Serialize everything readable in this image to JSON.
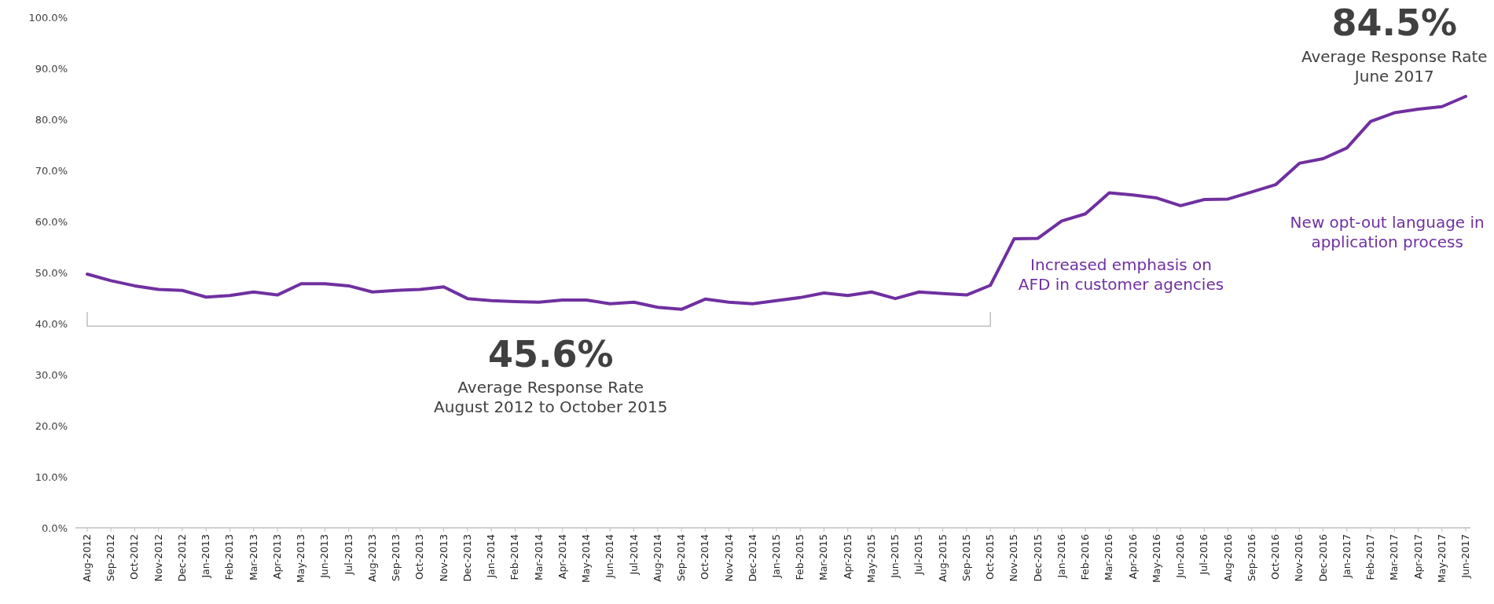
{
  "chart_data": {
    "type": "line",
    "categories": [
      "Aug-2012",
      "Sep-2012",
      "Oct-2012",
      "Nov-2012",
      "Dec-2012",
      "Jan-2013",
      "Feb-2013",
      "Mar-2013",
      "Apr-2013",
      "May-2013",
      "Jun-2013",
      "Jul-2013",
      "Aug-2013",
      "Sep-2013",
      "Oct-2013",
      "Nov-2013",
      "Dec-2013",
      "Jan-2014",
      "Feb-2014",
      "Mar-2014",
      "Apr-2014",
      "May-2014",
      "Jun-2014",
      "Jul-2014",
      "Aug-2014",
      "Sep-2014",
      "Oct-2014",
      "Nov-2014",
      "Dec-2014",
      "Jan-2015",
      "Feb-2015",
      "Mar-2015",
      "Apr-2015",
      "May-2015",
      "Jun-2015",
      "Jul-2015",
      "Aug-2015",
      "Sep-2015",
      "Oct-2015",
      "Nov-2015",
      "Dec-2015",
      "Jan-2016",
      "Feb-2016",
      "Mar-2016",
      "Apr-2016",
      "May-2016",
      "Jun-2016",
      "Jul-2016",
      "Aug-2016",
      "Sep-2016",
      "Oct-2016",
      "Nov-2016",
      "Dec-2016",
      "Jan-2017",
      "Feb-2017",
      "Mar-2017",
      "Apr-2017",
      "May-2017",
      "Jun-2017"
    ],
    "series": [
      {
        "color": "#7030a0",
        "values": [
          49.7,
          48.4,
          47.4,
          46.7,
          46.5,
          45.2,
          45.5,
          46.2,
          45.6,
          47.8,
          47.8,
          47.4,
          46.2,
          46.5,
          46.7,
          47.2,
          44.9,
          44.5,
          44.3,
          44.2,
          44.6,
          44.6,
          43.9,
          44.2,
          43.2,
          42.8,
          44.8,
          44.2,
          43.9,
          44.5,
          45.1,
          46.0,
          45.5,
          46.2,
          44.9,
          46.2,
          45.9,
          45.6,
          47.5,
          56.6,
          56.7,
          60.1,
          61.5,
          65.6,
          65.2,
          64.6,
          63.1,
          64.3,
          64.4,
          65.8,
          67.2,
          71.4,
          72.3,
          74.4,
          79.6,
          81.3,
          82.0,
          82.5,
          84.5
        ]
      }
    ],
    "ylim": [
      0,
      100
    ],
    "yticks": [
      {
        "value": 0,
        "label": "0.0%"
      },
      {
        "value": 10,
        "label": "10.0%"
      },
      {
        "value": 20,
        "label": "20.0%"
      },
      {
        "value": 30,
        "label": "30.0%"
      },
      {
        "value": 40,
        "label": "40.0%"
      },
      {
        "value": 50,
        "label": "50.0%"
      },
      {
        "value": 60,
        "label": "60.0%"
      },
      {
        "value": 70,
        "label": "70.0%"
      },
      {
        "value": 80,
        "label": "80.0%"
      },
      {
        "value": 90,
        "label": "90.0%"
      },
      {
        "value": 100,
        "label": "100.0%"
      }
    ],
    "annotations": [
      "45.6%",
      "Average Response Rate\nAugust 2012 to October 2015",
      "84.5%",
      "Average Response Rate\nJune 2017",
      "Increased emphasis on\nAFD in customer agencies",
      "New opt-out language in\napplication process"
    ],
    "grid": false,
    "marker": "none",
    "line_style": "solid"
  }
}
